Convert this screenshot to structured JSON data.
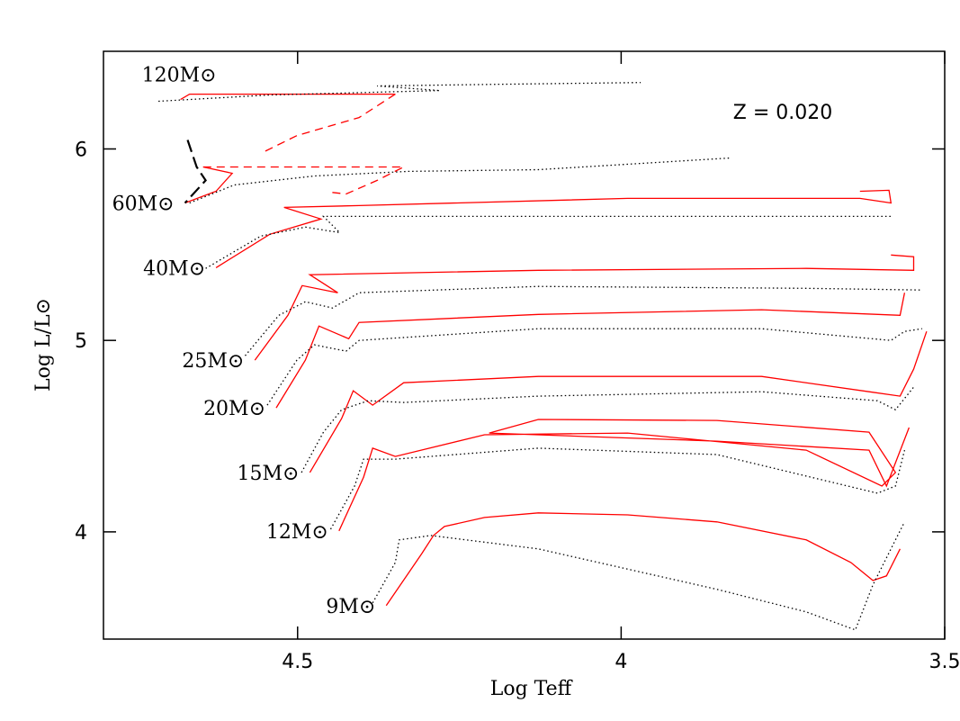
{
  "chart_data": {
    "type": "line",
    "xlabel": "Log Teff",
    "ylabel": "Log L/L⊙",
    "annotation": "Z  =  0.020",
    "xlim": [
      4.8,
      3.5
    ],
    "ylim": [
      3.44,
      6.51
    ],
    "xticks": [
      4.5,
      4,
      3.5
    ],
    "yticks": [
      4,
      5,
      6
    ],
    "series": [
      {
        "name": "9M⊙",
        "color": "#ff0000",
        "dash": "solid",
        "x": [
          4.363,
          4.308,
          4.29,
          4.273,
          4.211,
          4.128,
          3.99,
          3.852,
          3.714,
          3.645,
          3.611,
          3.59,
          3.569
        ],
        "y": [
          3.615,
          3.887,
          3.981,
          4.028,
          4.075,
          4.099,
          4.089,
          4.052,
          3.958,
          3.84,
          3.746,
          3.77,
          3.911
        ]
      },
      {
        "color": "#000000",
        "dash": "dotted",
        "x": [
          4.384,
          4.349,
          4.343,
          4.294,
          4.128,
          3.852,
          3.714,
          3.638,
          3.611,
          3.576,
          3.562
        ],
        "y": [
          3.629,
          3.84,
          3.958,
          3.981,
          3.911,
          3.7,
          3.582,
          3.488,
          3.723,
          3.958,
          4.052
        ]
      },
      {
        "name": "12M⊙",
        "color": "#ff0000",
        "dash": "solid",
        "x": [
          4.436,
          4.398,
          4.384,
          4.349,
          4.211,
          3.99,
          3.714,
          3.597,
          3.576,
          3.617,
          3.852,
          4.128,
          4.204,
          3.852,
          3.617,
          3.59,
          3.555
        ],
        "y": [
          4.005,
          4.286,
          4.437,
          4.394,
          4.507,
          4.516,
          4.427,
          4.239,
          4.31,
          4.521,
          4.582,
          4.587,
          4.516,
          4.474,
          4.427,
          4.239,
          4.545
        ]
      },
      {
        "color": "#000000",
        "dash": "dotted",
        "x": [
          4.449,
          4.412,
          4.398,
          4.349,
          4.128,
          3.852,
          3.604,
          3.576,
          3.562
        ],
        "y": [
          4.014,
          4.239,
          4.38,
          4.38,
          4.437,
          4.404,
          4.202,
          4.239,
          4.427
        ]
      },
      {
        "name": "15M⊙",
        "color": "#ff0000",
        "dash": "solid",
        "x": [
          4.481,
          4.432,
          4.414,
          4.384,
          4.336,
          4.128,
          3.783,
          3.617,
          3.569,
          3.548,
          3.528
        ],
        "y": [
          4.31,
          4.592,
          4.737,
          4.662,
          4.779,
          4.812,
          4.812,
          4.732,
          4.709,
          4.85,
          5.047
        ]
      },
      {
        "color": "#000000",
        "dash": "dotted",
        "x": [
          4.494,
          4.46,
          4.432,
          4.391,
          4.336,
          4.128,
          3.783,
          3.604,
          3.576,
          3.548
        ],
        "y": [
          4.31,
          4.521,
          4.638,
          4.685,
          4.676,
          4.709,
          4.732,
          4.685,
          4.638,
          4.756
        ]
      },
      {
        "name": "20M⊙",
        "color": "#ff0000",
        "dash": "solid",
        "x": [
          4.533,
          4.488,
          4.467,
          4.421,
          4.405,
          4.128,
          3.783,
          3.569,
          3.562
        ],
        "y": [
          4.648,
          4.897,
          5.075,
          5.009,
          5.094,
          5.136,
          5.16,
          5.131,
          5.249
        ]
      },
      {
        "color": "#000000",
        "dash": "dotted",
        "x": [
          4.547,
          4.501,
          4.474,
          4.425,
          4.405,
          4.128,
          3.783,
          3.583,
          3.562,
          3.535
        ],
        "y": [
          4.662,
          4.897,
          4.977,
          4.944,
          5.0,
          5.061,
          5.061,
          5.0,
          5.047,
          5.061
        ]
      },
      {
        "name": "25M⊙",
        "color": "#ff0000",
        "dash": "solid",
        "x": [
          4.566,
          4.515,
          4.493,
          4.438,
          4.481,
          4.128,
          3.714,
          3.548,
          3.548,
          3.583
        ],
        "y": [
          4.897,
          5.131,
          5.286,
          5.249,
          5.343,
          5.366,
          5.376,
          5.366,
          5.437,
          5.446
        ]
      },
      {
        "color": "#000000",
        "dash": "dotted",
        "x": [
          4.581,
          4.529,
          4.488,
          4.446,
          4.405,
          4.128,
          3.714,
          3.535
        ],
        "y": [
          4.92,
          5.131,
          5.202,
          5.169,
          5.249,
          5.282,
          5.272,
          5.263
        ]
      },
      {
        "name": "40M⊙",
        "color": "#ff0000",
        "dash": "solid",
        "x": [
          4.626,
          4.543,
          4.464,
          4.521,
          4.405,
          3.99,
          3.631,
          3.583,
          3.586,
          3.631
        ],
        "y": [
          5.38,
          5.554,
          5.634,
          5.695,
          5.704,
          5.742,
          5.742,
          5.718,
          5.784,
          5.779
        ]
      },
      {
        "color": "#000000",
        "dash": "dotted",
        "x": [
          4.642,
          4.557,
          4.488,
          4.435,
          4.46,
          4.128,
          3.583
        ],
        "y": [
          5.376,
          5.545,
          5.592,
          5.563,
          5.648,
          5.648,
          5.648
        ]
      },
      {
        "name": "60M⊙",
        "color": "#ff0000",
        "dash": "solid",
        "x": [
          4.674,
          4.626,
          4.601,
          4.646
        ],
        "y": [
          5.718,
          5.779,
          5.873,
          5.906
        ]
      },
      {
        "color": "#000000",
        "dash": "dotted",
        "x": [
          4.667,
          4.598,
          4.474,
          4.329,
          4.128,
          3.831
        ],
        "y": [
          5.718,
          5.812,
          5.859,
          5.883,
          5.892,
          5.953
        ]
      },
      {
        "color": "#ff0000",
        "dash": "dashed",
        "x": [
          4.646,
          4.336,
          4.377,
          4.425,
          4.453
        ],
        "y": [
          5.906,
          5.906,
          5.836,
          5.765,
          5.775
        ]
      },
      {
        "color": "#000000",
        "dash": "longdash",
        "x": [
          4.67,
          4.656,
          4.642,
          4.674
        ],
        "y": [
          6.047,
          5.906,
          5.836,
          5.718
        ]
      },
      {
        "name": "120M⊙",
        "color": "#ff0000",
        "dash": "solid",
        "x": [
          4.681,
          4.667,
          4.349
        ],
        "y": [
          6.258,
          6.286,
          6.286
        ]
      },
      {
        "color": "#000000",
        "dash": "dotted",
        "x": [
          4.715,
          4.543,
          4.28,
          4.377,
          4.184,
          3.97
        ],
        "y": [
          6.249,
          6.282,
          6.305,
          6.329,
          6.338,
          6.347
        ]
      },
      {
        "color": "#ff0000",
        "dash": "dashed",
        "x": [
          4.349,
          4.405,
          4.501,
          4.557
        ],
        "y": [
          6.286,
          6.164,
          6.07,
          5.977
        ]
      }
    ]
  }
}
